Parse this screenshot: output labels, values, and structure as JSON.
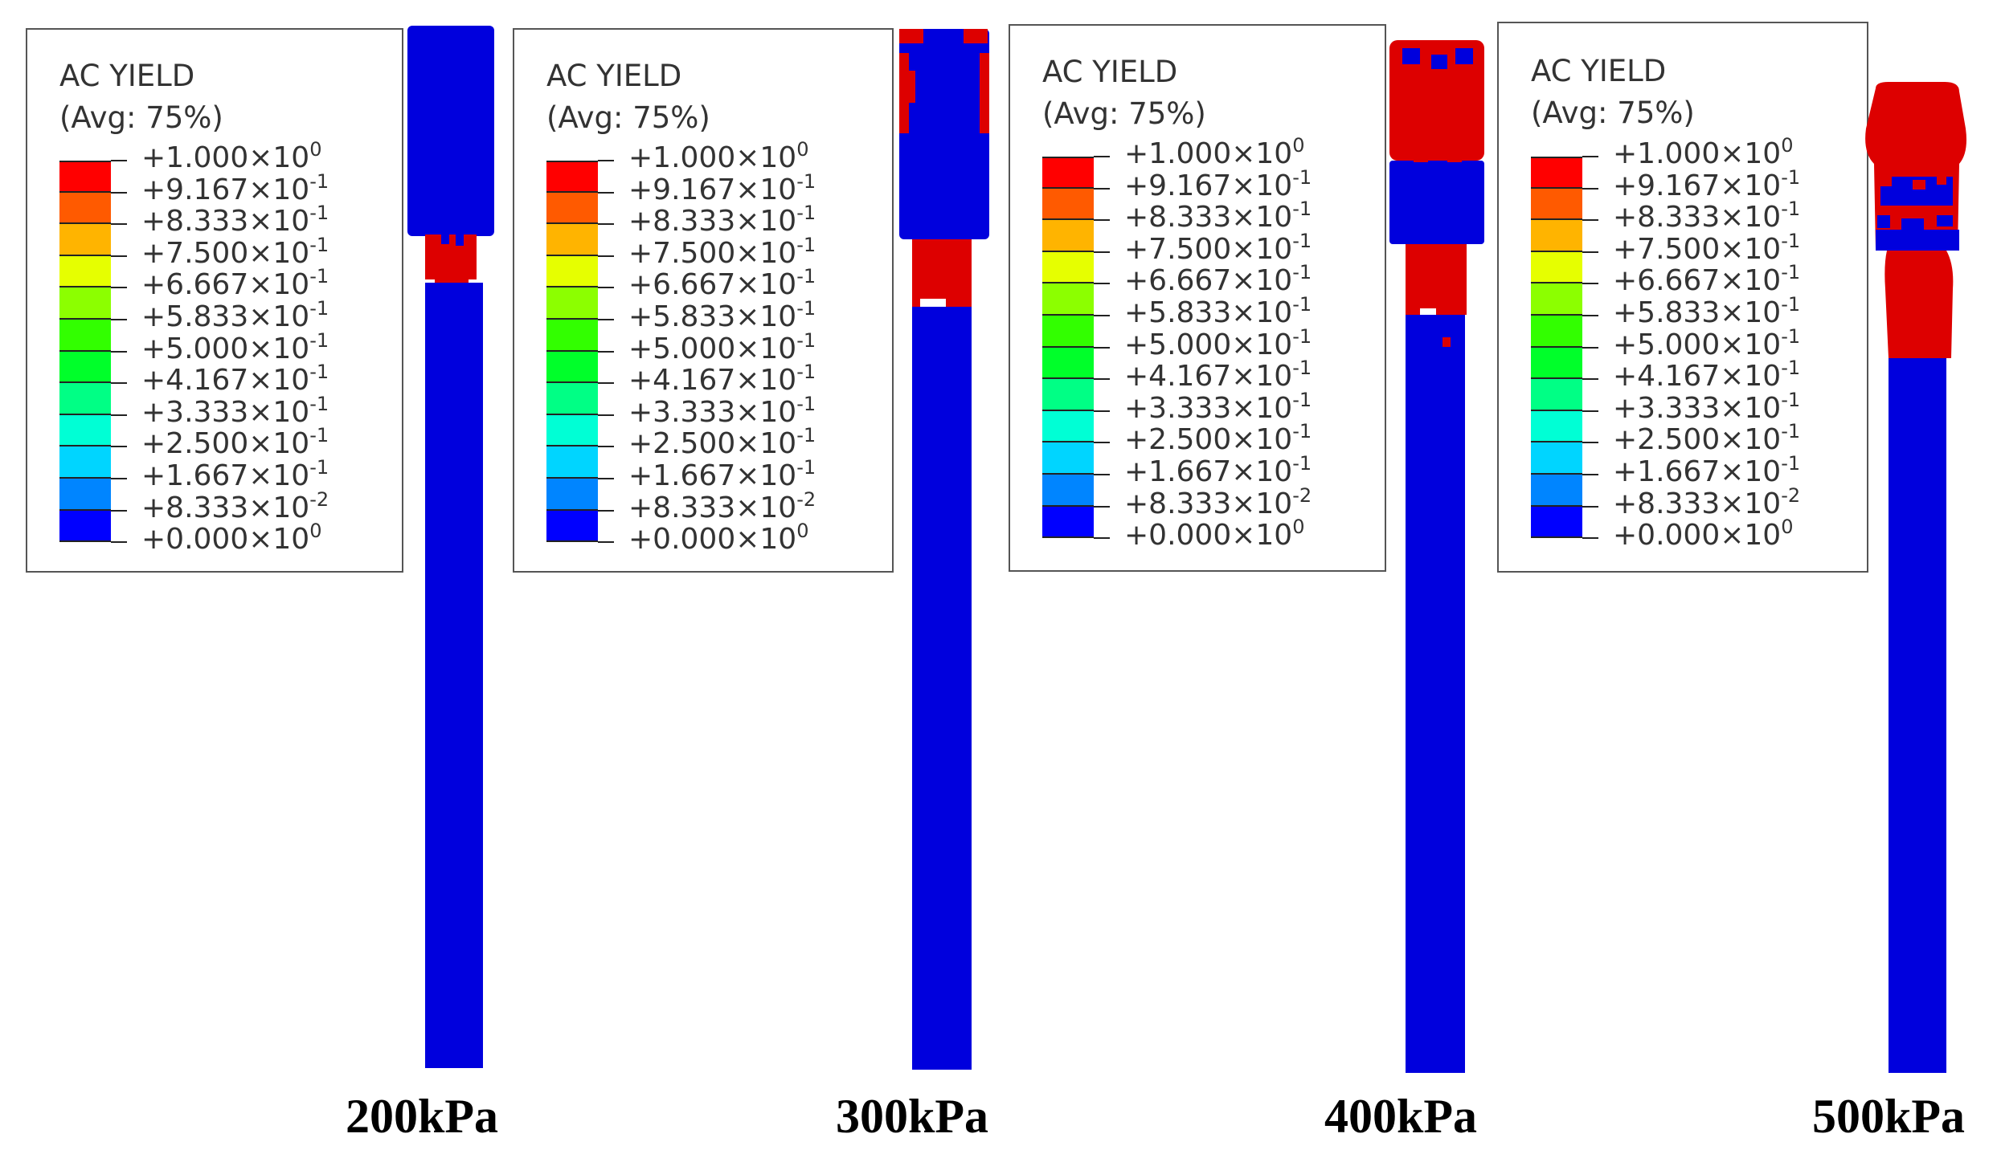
{
  "legend": {
    "title": "AC YIELD",
    "subtitle": "(Avg: 75%)",
    "entries": [
      {
        "mantissa": "+1.000",
        "exponent": "0"
      },
      {
        "mantissa": "+9.167",
        "exponent": "-1"
      },
      {
        "mantissa": "+8.333",
        "exponent": "-1"
      },
      {
        "mantissa": "+7.500",
        "exponent": "-1"
      },
      {
        "mantissa": "+6.667",
        "exponent": "-1"
      },
      {
        "mantissa": "+5.833",
        "exponent": "-1"
      },
      {
        "mantissa": "+5.000",
        "exponent": "-1"
      },
      {
        "mantissa": "+4.167",
        "exponent": "-1"
      },
      {
        "mantissa": "+3.333",
        "exponent": "-1"
      },
      {
        "mantissa": "+2.500",
        "exponent": "-1"
      },
      {
        "mantissa": "+1.667",
        "exponent": "-1"
      },
      {
        "mantissa": "+8.333",
        "exponent": "-2"
      },
      {
        "mantissa": "+0.000",
        "exponent": "0"
      }
    ],
    "colors": [
      "#ff0000",
      "#ff5a00",
      "#ffb400",
      "#e6ff00",
      "#8cff00",
      "#32ff00",
      "#00ff2a",
      "#00ff85",
      "#00ffd5",
      "#00d5ff",
      "#0085ff",
      "#002aff",
      "#0000ff"
    ]
  },
  "colors": {
    "yield": "#dd0000",
    "elastic": "#0000dd"
  },
  "panels": [
    {
      "load": "200kPa"
    },
    {
      "load": "300kPa"
    },
    {
      "load": "400kPa"
    },
    {
      "load": "500kPa"
    }
  ]
}
